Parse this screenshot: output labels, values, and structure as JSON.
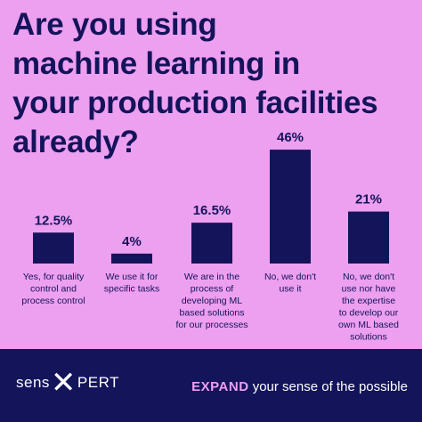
{
  "headline": {
    "line1": "Are you using",
    "line2a": "machine learning",
    "line2b": " in",
    "line3": "your production facilities",
    "line4": "already?"
  },
  "colors": {
    "background": "#ed9ff0",
    "dark": "#14145a",
    "headline_accent": "#14145a",
    "white": "#ffffff"
  },
  "chart_data": {
    "type": "bar",
    "title": "Are you using machine learning in your production facilities already?",
    "categories": [
      [
        "Yes, for quality",
        "control and",
        "process control"
      ],
      [
        "We use it for",
        "specific tasks"
      ],
      [
        "We are in the",
        "process of",
        "developing ML",
        "based solutions",
        "for our processes"
      ],
      [
        "No, we don't",
        "use it"
      ],
      [
        "No, we don't",
        "use nor have",
        "the expertise",
        "to develop our",
        "own ML based",
        "solutions"
      ]
    ],
    "values": [
      12.5,
      4,
      16.5,
      46,
      21
    ],
    "value_labels": [
      "12.5%",
      "4%",
      "16.5%",
      "46%",
      "21%"
    ],
    "ylim": [
      0,
      50
    ],
    "grid": false,
    "bar_color": "#14145a"
  },
  "footer": {
    "brand_left": "sens",
    "brand_right": "PERT",
    "tagline_bold": "EXPAND",
    "tagline_rest": " your sense of the possible"
  }
}
